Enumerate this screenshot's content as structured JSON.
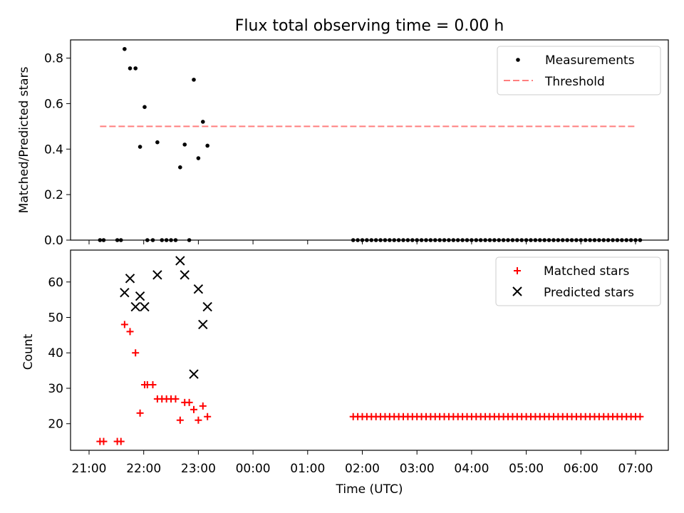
{
  "figure": {
    "title": "Flux total observing time = 0.00 h",
    "xlabel": "Time (UTC)"
  },
  "chart_data": [
    {
      "type": "scatter",
      "ylabel": "Matched/Predicted stars",
      "ylim": [
        0,
        0.88
      ],
      "yticks": [
        0.0,
        0.2,
        0.4,
        0.6,
        0.8
      ],
      "ytick_labels": [
        "0.0",
        "0.2",
        "0.4",
        "0.6",
        "0.8"
      ],
      "legend": {
        "placement": "top-right",
        "entries": [
          "Measurements",
          "Threshold"
        ]
      },
      "series": [
        {
          "name": "Measurements",
          "marker": "dot",
          "color": "#000000",
          "points": [
            [
              "21:12",
              0.0
            ],
            [
              "21:16",
              0.0
            ],
            [
              "21:31",
              0.0
            ],
            [
              "21:35",
              0.0
            ],
            [
              "21:39",
              0.84
            ],
            [
              "21:45",
              0.755
            ],
            [
              "21:51",
              0.755
            ],
            [
              "21:56",
              0.41
            ],
            [
              "22:01",
              0.585
            ],
            [
              "22:04",
              0.0
            ],
            [
              "22:10",
              0.0
            ],
            [
              "22:15",
              0.43
            ],
            [
              "22:20",
              0.0
            ],
            [
              "22:25",
              0.0
            ],
            [
              "22:30",
              0.0
            ],
            [
              "22:35",
              0.0
            ],
            [
              "22:40",
              0.32
            ],
            [
              "22:45",
              0.42
            ],
            [
              "22:50",
              0.0
            ],
            [
              "22:55",
              0.705
            ],
            [
              "23:00",
              0.36
            ],
            [
              "23:05",
              0.52
            ],
            [
              "23:10",
              0.415
            ],
            [
              "01:50",
              0.0
            ],
            [
              "01:55",
              0.0
            ],
            [
              "02:00",
              0.0
            ],
            [
              "02:05",
              0.0
            ],
            [
              "02:10",
              0.0
            ],
            [
              "02:15",
              0.0
            ],
            [
              "02:20",
              0.0
            ],
            [
              "02:25",
              0.0
            ],
            [
              "02:30",
              0.0
            ],
            [
              "02:35",
              0.0
            ],
            [
              "02:40",
              0.0
            ],
            [
              "02:45",
              0.0
            ],
            [
              "02:50",
              0.0
            ],
            [
              "02:55",
              0.0
            ],
            [
              "03:00",
              0.0
            ],
            [
              "03:05",
              0.0
            ],
            [
              "03:10",
              0.0
            ],
            [
              "03:15",
              0.0
            ],
            [
              "03:20",
              0.0
            ],
            [
              "03:25",
              0.0
            ],
            [
              "03:30",
              0.0
            ],
            [
              "03:35",
              0.0
            ],
            [
              "03:40",
              0.0
            ],
            [
              "03:45",
              0.0
            ],
            [
              "03:50",
              0.0
            ],
            [
              "03:55",
              0.0
            ],
            [
              "04:00",
              0.0
            ],
            [
              "04:05",
              0.0
            ],
            [
              "04:10",
              0.0
            ],
            [
              "04:15",
              0.0
            ],
            [
              "04:20",
              0.0
            ],
            [
              "04:25",
              0.0
            ],
            [
              "04:30",
              0.0
            ],
            [
              "04:35",
              0.0
            ],
            [
              "04:40",
              0.0
            ],
            [
              "04:45",
              0.0
            ],
            [
              "04:50",
              0.0
            ],
            [
              "04:55",
              0.0
            ],
            [
              "05:00",
              0.0
            ],
            [
              "05:05",
              0.0
            ],
            [
              "05:10",
              0.0
            ],
            [
              "05:15",
              0.0
            ],
            [
              "05:20",
              0.0
            ],
            [
              "05:25",
              0.0
            ],
            [
              "05:30",
              0.0
            ],
            [
              "05:35",
              0.0
            ],
            [
              "05:40",
              0.0
            ],
            [
              "05:45",
              0.0
            ],
            [
              "05:50",
              0.0
            ],
            [
              "05:55",
              0.0
            ],
            [
              "06:00",
              0.0
            ],
            [
              "06:05",
              0.0
            ],
            [
              "06:10",
              0.0
            ],
            [
              "06:15",
              0.0
            ],
            [
              "06:20",
              0.0
            ],
            [
              "06:25",
              0.0
            ],
            [
              "06:30",
              0.0
            ],
            [
              "06:35",
              0.0
            ],
            [
              "06:40",
              0.0
            ],
            [
              "06:45",
              0.0
            ],
            [
              "06:50",
              0.0
            ],
            [
              "06:55",
              0.0
            ],
            [
              "07:00",
              0.0
            ],
            [
              "07:05",
              0.0
            ]
          ]
        },
        {
          "name": "Threshold",
          "marker": "dashed-line",
          "color": "#ff7f7f",
          "points": [
            [
              "21:12",
              0.5
            ],
            [
              "07:00",
              0.5
            ]
          ]
        }
      ]
    },
    {
      "type": "scatter",
      "ylabel": "Count",
      "ylim": [
        12.5,
        69
      ],
      "yticks": [
        20,
        30,
        40,
        50,
        60
      ],
      "ytick_labels": [
        "20",
        "30",
        "40",
        "50",
        "60"
      ],
      "x_tick_labels": [
        "21:00",
        "22:00",
        "23:00",
        "00:00",
        "01:00",
        "02:00",
        "03:00",
        "04:00",
        "05:00",
        "06:00",
        "07:00"
      ],
      "legend": {
        "placement": "top-right",
        "entries": [
          "Matched stars",
          "Predicted stars"
        ]
      },
      "series": [
        {
          "name": "Matched stars",
          "marker": "plus",
          "color": "#ff0000",
          "points": [
            [
              "21:12",
              15
            ],
            [
              "21:16",
              15
            ],
            [
              "21:31",
              15
            ],
            [
              "21:35",
              15
            ],
            [
              "21:39",
              48
            ],
            [
              "21:45",
              46
            ],
            [
              "21:51",
              40
            ],
            [
              "21:56",
              23
            ],
            [
              "22:01",
              31
            ],
            [
              "22:04",
              31
            ],
            [
              "22:10",
              31
            ],
            [
              "22:15",
              27
            ],
            [
              "22:20",
              27
            ],
            [
              "22:25",
              27
            ],
            [
              "22:30",
              27
            ],
            [
              "22:35",
              27
            ],
            [
              "22:40",
              21
            ],
            [
              "22:45",
              26
            ],
            [
              "22:50",
              26
            ],
            [
              "22:55",
              24
            ],
            [
              "23:00",
              21
            ],
            [
              "23:05",
              25
            ],
            [
              "23:10",
              22
            ],
            [
              "01:50",
              22
            ],
            [
              "01:55",
              22
            ],
            [
              "02:00",
              22
            ],
            [
              "02:05",
              22
            ],
            [
              "02:10",
              22
            ],
            [
              "02:15",
              22
            ],
            [
              "02:20",
              22
            ],
            [
              "02:25",
              22
            ],
            [
              "02:30",
              22
            ],
            [
              "02:35",
              22
            ],
            [
              "02:40",
              22
            ],
            [
              "02:45",
              22
            ],
            [
              "02:50",
              22
            ],
            [
              "02:55",
              22
            ],
            [
              "03:00",
              22
            ],
            [
              "03:05",
              22
            ],
            [
              "03:10",
              22
            ],
            [
              "03:15",
              22
            ],
            [
              "03:20",
              22
            ],
            [
              "03:25",
              22
            ],
            [
              "03:30",
              22
            ],
            [
              "03:35",
              22
            ],
            [
              "03:40",
              22
            ],
            [
              "03:45",
              22
            ],
            [
              "03:50",
              22
            ],
            [
              "03:55",
              22
            ],
            [
              "04:00",
              22
            ],
            [
              "04:05",
              22
            ],
            [
              "04:10",
              22
            ],
            [
              "04:15",
              22
            ],
            [
              "04:20",
              22
            ],
            [
              "04:25",
              22
            ],
            [
              "04:30",
              22
            ],
            [
              "04:35",
              22
            ],
            [
              "04:40",
              22
            ],
            [
              "04:45",
              22
            ],
            [
              "04:50",
              22
            ],
            [
              "04:55",
              22
            ],
            [
              "05:00",
              22
            ],
            [
              "05:05",
              22
            ],
            [
              "05:10",
              22
            ],
            [
              "05:15",
              22
            ],
            [
              "05:20",
              22
            ],
            [
              "05:25",
              22
            ],
            [
              "05:30",
              22
            ],
            [
              "05:35",
              22
            ],
            [
              "05:40",
              22
            ],
            [
              "05:45",
              22
            ],
            [
              "05:50",
              22
            ],
            [
              "05:55",
              22
            ],
            [
              "06:00",
              22
            ],
            [
              "06:05",
              22
            ],
            [
              "06:10",
              22
            ],
            [
              "06:15",
              22
            ],
            [
              "06:20",
              22
            ],
            [
              "06:25",
              22
            ],
            [
              "06:30",
              22
            ],
            [
              "06:35",
              22
            ],
            [
              "06:40",
              22
            ],
            [
              "06:45",
              22
            ],
            [
              "06:50",
              22
            ],
            [
              "06:55",
              22
            ],
            [
              "07:00",
              22
            ],
            [
              "07:05",
              22
            ]
          ]
        },
        {
          "name": "Predicted stars",
          "marker": "x",
          "color": "#000000",
          "points": [
            [
              "21:39",
              57
            ],
            [
              "21:45",
              61
            ],
            [
              "21:51",
              53
            ],
            [
              "21:56",
              56
            ],
            [
              "22:01",
              53
            ],
            [
              "22:15",
              62
            ],
            [
              "22:40",
              66
            ],
            [
              "22:45",
              62
            ],
            [
              "22:55",
              34
            ],
            [
              "23:00",
              58
            ],
            [
              "23:05",
              48
            ],
            [
              "23:10",
              53
            ]
          ]
        }
      ]
    }
  ]
}
